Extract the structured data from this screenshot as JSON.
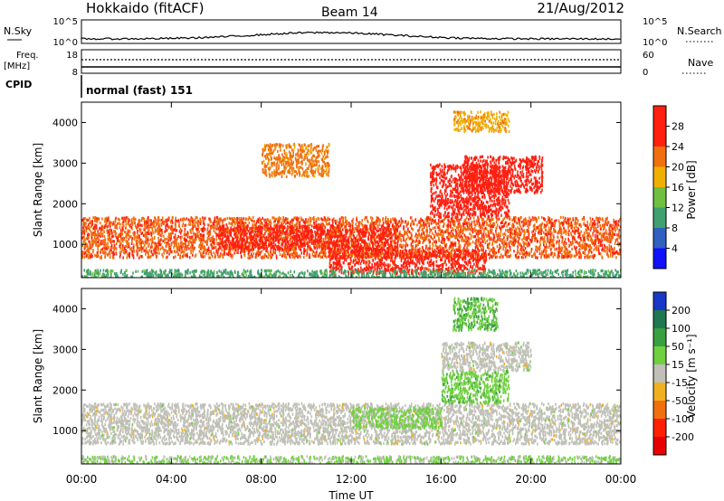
{
  "header": {
    "station": "Hokkaido (fitACF)",
    "beam": "Beam 14",
    "date": "21/Aug/2012"
  },
  "top_panels": {
    "nsky_label": "N.Sky",
    "nsky_ticks": [
      "10^5",
      "10^0"
    ],
    "nsearch_label": "N.Search",
    "nsearch_ticks": [
      "10^5",
      "10^0"
    ],
    "freq_label": "Freq.",
    "freq_unit": "[MHz]",
    "freq_ticks": [
      "18",
      "8"
    ],
    "nave_label": "Nave",
    "nave_ticks": [
      "60",
      "0"
    ],
    "cpid_label": "CPID",
    "cpid_text": "normal (fast) 151"
  },
  "axes": {
    "xlabel": "Time UT",
    "xticks": [
      "00:00",
      "04:00",
      "08:00",
      "12:00",
      "16:00",
      "20:00",
      "00:00"
    ],
    "ylabel": "Slant Range [km]",
    "yticks": [
      "1000",
      "2000",
      "3000",
      "4000"
    ]
  },
  "colorbars": {
    "power": {
      "label": "Power [dB]",
      "ticks": [
        "4",
        "8",
        "12",
        "16",
        "20",
        "24",
        "28"
      ],
      "colors": [
        "#1010ff",
        "#3060c0",
        "#40a070",
        "#70c040",
        "#f0b000",
        "#f07010",
        "#ff2010",
        "#ff2010"
      ]
    },
    "velocity": {
      "label": "Velocity [m s⁻¹]",
      "ticks": [
        "200",
        "100",
        "50",
        "15",
        "-15",
        "-50",
        "-100",
        "-200"
      ],
      "colors": [
        "#1838c8",
        "#207850",
        "#38a040",
        "#70d040",
        "#c0c0b8",
        "#f0b020",
        "#f07010",
        "#ff2000",
        "#e80000"
      ]
    }
  },
  "chart_data": [
    {
      "type": "heatmap",
      "name": "Power",
      "x_range": [
        "00:00",
        "24:00"
      ],
      "y_range": [
        180,
        4500
      ],
      "xlabel": "Time UT",
      "ylabel": "Slant Range [km]",
      "colorbar_label": "Power [dB]",
      "colorbar_range": [
        0,
        30
      ],
      "echo_regions": [
        {
          "t0": 0.0,
          "t1": 24.0,
          "r0": 700,
          "r1": 1700,
          "value": 22
        },
        {
          "t0": 6.0,
          "t1": 14.0,
          "r0": 900,
          "r1": 1500,
          "value": 24
        },
        {
          "t0": 11.0,
          "t1": 18.0,
          "r0": 300,
          "r1": 900,
          "value": 24
        },
        {
          "t0": 15.5,
          "t1": 19.0,
          "r0": 1700,
          "r1": 3000,
          "value": 26
        },
        {
          "t0": 17.0,
          "t1": 20.5,
          "r0": 2300,
          "r1": 3200,
          "value": 28
        },
        {
          "t0": 16.5,
          "t1": 19.0,
          "r0": 3800,
          "r1": 4300,
          "value": 18
        },
        {
          "t0": 8.0,
          "t1": 11.0,
          "r0": 2700,
          "r1": 3500,
          "value": 20
        },
        {
          "t0": 0.0,
          "t1": 24.0,
          "r0": 180,
          "r1": 400,
          "value": 10
        }
      ]
    },
    {
      "type": "heatmap",
      "name": "Velocity",
      "x_range": [
        "00:00",
        "24:00"
      ],
      "y_range": [
        180,
        4500
      ],
      "xlabel": "Time UT",
      "ylabel": "Slant Range [km]",
      "colorbar_label": "Velocity [m s⁻¹]",
      "colorbar_range": [
        -200,
        200
      ],
      "echo_regions": [
        {
          "t0": 0.0,
          "t1": 24.0,
          "r0": 700,
          "r1": 1700,
          "value": 0
        },
        {
          "t0": 12.0,
          "t1": 16.0,
          "r0": 1100,
          "r1": 1600,
          "value": 40
        },
        {
          "t0": 16.0,
          "t1": 19.0,
          "r0": 1700,
          "r1": 2500,
          "value": 50
        },
        {
          "t0": 16.5,
          "t1": 18.5,
          "r0": 3500,
          "r1": 4300,
          "value": 60
        },
        {
          "t0": 16.0,
          "t1": 20.0,
          "r0": 2500,
          "r1": 3200,
          "value": 0
        },
        {
          "t0": 0.0,
          "t1": 24.0,
          "r0": 180,
          "r1": 400,
          "value": 30
        }
      ]
    }
  ]
}
